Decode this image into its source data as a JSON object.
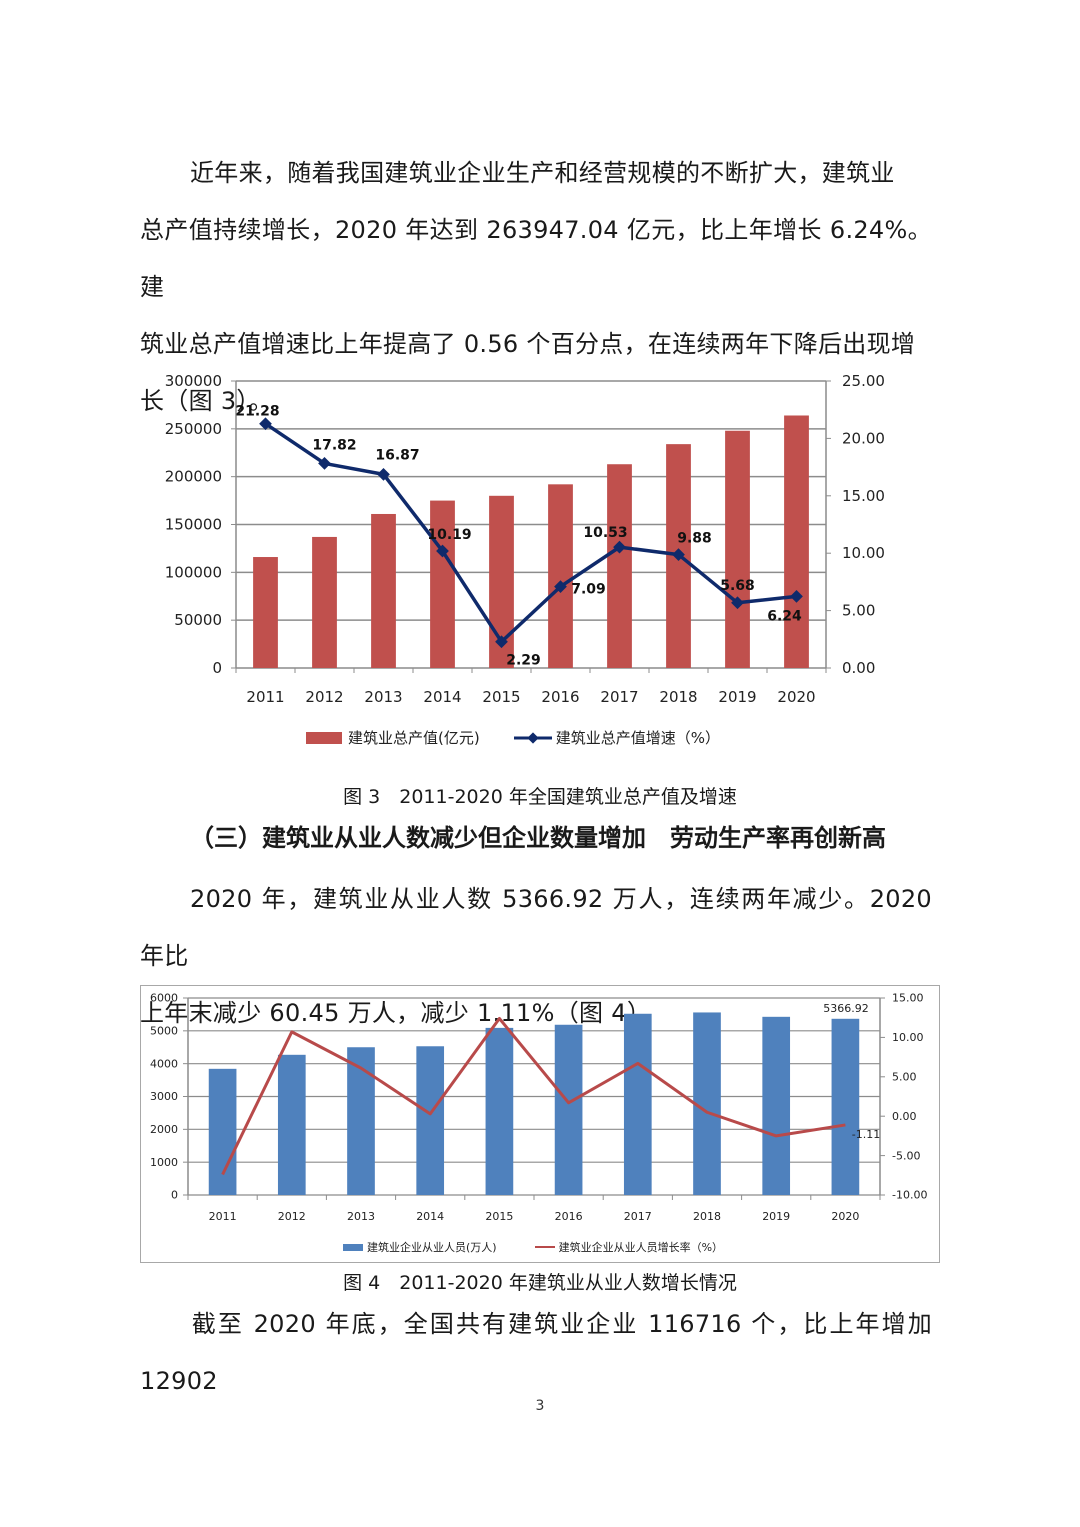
{
  "paragraph1": {
    "lines": [
      "近年来，随着我国建筑业企业生产和经营规模的不断扩大，建筑业",
      "总产值持续增长，2020 年达到 263947.04 亿元，比上年增长 6.24%。建",
      "筑业总产值增速比上年提高了 0.56 个百分点，在连续两年下降后出现增",
      "长（图 3）。"
    ]
  },
  "figure3": {
    "caption": "图 3　2011-2020 年全国建筑业总产值及增速",
    "legend": {
      "bar": "建筑业总产值(亿元)",
      "line": "建筑业总产值增速（%）"
    },
    "left_ticks": [
      "300000",
      "250000",
      "200000",
      "150000",
      "100000",
      "50000",
      "0"
    ],
    "right_ticks": [
      "25.00",
      "20.00",
      "15.00",
      "10.00",
      "5.00",
      "0.00"
    ]
  },
  "heading": "（三）建筑业从业人数减少但企业数量增加　劳动生产率再创新高",
  "paragraph2": {
    "lines": [
      "2020 年，建筑业从业人数 5366.92 万人，连续两年减少。2020 年比",
      "上年末减少 60.45 万人，减少 1.11%（图 4）。"
    ]
  },
  "figure4": {
    "caption": "图 4　2011-2020 年建筑业从业人数增长情况",
    "legend": {
      "bar": "建筑业企业从业人员(万人)",
      "line": "建筑业企业从业人员增长率（%）"
    },
    "left_ticks": [
      "6000",
      "5000",
      "4000",
      "3000",
      "2000",
      "1000",
      "0"
    ],
    "right_ticks": [
      "15.00",
      "10.00",
      "5.00",
      "0.00",
      "-5.00",
      "-10.00"
    ],
    "labels": {
      "bar_2020": "5366.92",
      "line_2020": "-1.11"
    }
  },
  "paragraph3": {
    "lines": [
      "截至 2020 年底，全国共有建筑业企业 116716 个，比上年增加 12902"
    ]
  },
  "page_number": "3",
  "colors": {
    "bar1": "#c0504d",
    "line1": "#0f2a6b",
    "bar2": "#4f81bd",
    "line2": "#b84a4a"
  },
  "chart_data": [
    {
      "type": "bar+line",
      "title": "图 3　2011-2020 年全国建筑业总产值及增速",
      "categories": [
        "2011",
        "2012",
        "2013",
        "2014",
        "2015",
        "2016",
        "2017",
        "2018",
        "2019",
        "2020"
      ],
      "series": [
        {
          "name": "建筑业总产值(亿元)",
          "type": "bar",
          "axis": "left",
          "values": [
            116000,
            137000,
            161000,
            175000,
            180000,
            192000,
            213000,
            234000,
            248000,
            263947
          ]
        },
        {
          "name": "建筑业总产值增速（%）",
          "type": "line",
          "axis": "right",
          "values": [
            21.28,
            17.82,
            16.87,
            10.19,
            2.29,
            7.09,
            10.53,
            9.88,
            5.68,
            6.24
          ],
          "data_labels": [
            "21.28",
            "17.82",
            "16.87",
            "10.19",
            "2.29",
            "7.09",
            "10.53",
            "9.88",
            "5.68",
            "6.24"
          ]
        }
      ],
      "ylim_left": [
        0,
        300000
      ],
      "ylim_right": [
        0,
        25
      ],
      "grid": true,
      "legend_position": "bottom"
    },
    {
      "type": "bar+line",
      "title": "图 4　2011-2020 年建筑业从业人数增长情况",
      "categories": [
        "2011",
        "2012",
        "2013",
        "2014",
        "2015",
        "2016",
        "2017",
        "2018",
        "2019",
        "2020"
      ],
      "series": [
        {
          "name": "建筑业企业从业人员(万人)",
          "type": "bar",
          "axis": "left",
          "values": [
            3843,
            4270,
            4500,
            4530,
            5090,
            5185,
            5520,
            5560,
            5427,
            5366.92
          ]
        },
        {
          "name": "建筑业企业从业人员增长率（%）",
          "type": "line",
          "axis": "right",
          "values": [
            -7.4,
            10.7,
            6.1,
            0.3,
            12.4,
            1.7,
            6.7,
            0.5,
            -2.5,
            -1.11
          ]
        }
      ],
      "ylim_left": [
        0,
        6000
      ],
      "ylim_right": [
        -10,
        15
      ],
      "grid": true,
      "legend_position": "bottom"
    }
  ]
}
